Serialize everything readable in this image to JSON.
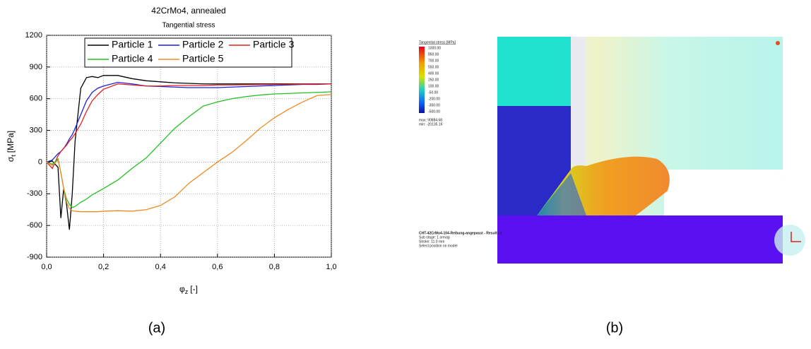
{
  "chart_data": {
    "type": "line",
    "title": "42CrMo4, annealed",
    "subtitle": "Tangential stress",
    "ylabel": {
      "symbol": "σ",
      "subscript": "t",
      "unit": "[MPa]"
    },
    "xlabel": {
      "symbol": "φ",
      "subscript": "z",
      "unit": "[-]"
    },
    "x": [
      0,
      0.02,
      0.04,
      0.05,
      0.06,
      0.07,
      0.08,
      0.09,
      0.1,
      0.12,
      0.14,
      0.16,
      0.18,
      0.2,
      0.25,
      0.3,
      0.35,
      0.4,
      0.45,
      0.5,
      0.55,
      0.6,
      0.65,
      0.7,
      0.75,
      0.8,
      0.85,
      0.9,
      0.95,
      1.0
    ],
    "series": [
      {
        "name": "Particle 1",
        "color": "#000000",
        "values": [
          0,
          10,
          -50,
          -530,
          -250,
          -400,
          -640,
          -300,
          200,
          700,
          800,
          810,
          800,
          820,
          820,
          790,
          770,
          760,
          750,
          745,
          740,
          740,
          740,
          740,
          740,
          740,
          740,
          740,
          740,
          740
        ]
      },
      {
        "name": "Particle 2",
        "color": "#1f1fe0",
        "values": [
          0,
          20,
          80,
          100,
          130,
          170,
          220,
          260,
          320,
          450,
          580,
          660,
          700,
          720,
          755,
          740,
          720,
          715,
          710,
          705,
          705,
          705,
          710,
          715,
          720,
          725,
          730,
          735,
          735,
          740
        ]
      },
      {
        "name": "Particle 3",
        "color": "#e0201f",
        "values": [
          0,
          -60,
          60,
          100,
          130,
          160,
          200,
          230,
          270,
          360,
          480,
          580,
          640,
          690,
          740,
          730,
          720,
          720,
          725,
          725,
          725,
          730,
          730,
          732,
          734,
          735,
          736,
          738,
          739,
          740
        ]
      },
      {
        "name": "Particle 4",
        "color": "#22c022",
        "values": [
          0,
          -20,
          30,
          -100,
          -250,
          -350,
          -400,
          -430,
          -420,
          -380,
          -350,
          -310,
          -280,
          -250,
          -170,
          -60,
          40,
          180,
          320,
          430,
          530,
          570,
          600,
          620,
          635,
          645,
          650,
          655,
          660,
          665
        ]
      },
      {
        "name": "Particle 5",
        "color": "#f08a20",
        "values": [
          0,
          -30,
          20,
          -100,
          -250,
          -380,
          -440,
          -460,
          -465,
          -470,
          -470,
          -470,
          -470,
          -465,
          -460,
          -465,
          -450,
          -410,
          -330,
          -200,
          -100,
          0,
          90,
          200,
          320,
          420,
          500,
          570,
          630,
          640
        ]
      }
    ],
    "xlim": [
      0,
      1.0
    ],
    "xticks": [
      {
        "value": 0,
        "label": "0,0"
      },
      {
        "value": 0.2,
        "label": "0,2"
      },
      {
        "value": 0.4,
        "label": "0,4"
      },
      {
        "value": 0.6,
        "label": "0,6"
      },
      {
        "value": 0.8,
        "label": "0,8"
      },
      {
        "value": 1.0,
        "label": "1,0"
      }
    ],
    "ylim": [
      -900,
      1200
    ],
    "yticks": [
      -900,
      -600,
      -300,
      0,
      300,
      600,
      900,
      1200
    ],
    "grid": true,
    "legend": "top"
  },
  "panel_b": {
    "legend_title": "Tangential stress [MPa]",
    "legend_values": [
      "1000.00",
      "850.00",
      "700.00",
      "550.00",
      "400.00",
      "250.00",
      "100.00",
      "-50.00",
      "-200.00",
      "-350.00",
      "-500.00"
    ],
    "max": "max:  90884.68",
    "min": "min:  -20135.16",
    "info": [
      "CHT-42CrMo4-104-Reibung-angepasst - Results 1",
      "Sub stage: 1 ormag",
      "Stroke: 11.0 mm",
      "Select position on model"
    ]
  },
  "captions": [
    "(a)",
    "(b)"
  ]
}
